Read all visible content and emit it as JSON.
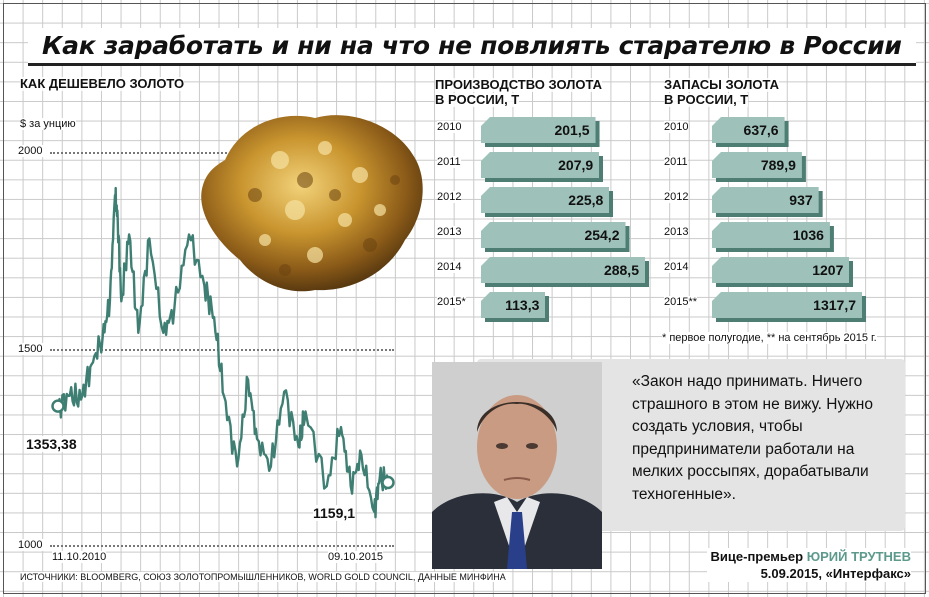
{
  "title": "Как заработать и ни на что не повлиять старателю в России",
  "gold_price": {
    "heading": "КАК ДЕШЕВЕЛО ЗОЛОТО",
    "unit": "$ за унцию",
    "y_ticks": [
      "2000",
      "1500",
      "1000"
    ],
    "start_value": "1353,38",
    "end_value": "1159,1",
    "start_date": "11.10.2010",
    "end_date": "09.10.2015"
  },
  "production": {
    "heading_line1": "ПРОИЗВОДСТВО ЗОЛОТА",
    "heading_line2": "В РОССИИ, Т",
    "years": [
      "2010",
      "2011",
      "2012",
      "2013",
      "2014",
      "2015*"
    ],
    "labels": [
      "201,5",
      "207,9",
      "225,8",
      "254,2",
      "288,5",
      "113,3"
    ]
  },
  "reserves": {
    "heading_line1": "ЗАПАСЫ ЗОЛОТА",
    "heading_line2": "В РОССИИ, Т",
    "years": [
      "2010",
      "2011",
      "2012",
      "2013",
      "2014",
      "2015**"
    ],
    "labels": [
      "637,6",
      "789,9",
      "937",
      "1036",
      "1207",
      "1317,7"
    ]
  },
  "footnote": "* первое полугодие, ** на сентябрь 2015 г.",
  "quote": "«Закон надо принимать. Ничего страшного в этом не вижу. Нужно создать условия, чтобы предприниматели работали на мелких россыпях, дорабатывали техногенные».",
  "attribution": {
    "role": "Вице-премьер",
    "name": "ЮРИЙ ТРУТНЕВ",
    "date_source": "5.09.2015, «Интерфакс»"
  },
  "sources": "ИСТОЧНИКИ: BLOOMBERG, СОЮЗ ЗОЛОТОПРОМЫШЛЕННИКОВ, WORLD GOLD COUNCIL, ДАННЫЕ МИНФИНА",
  "colors": {
    "accent": "#5c9a8c",
    "line": "#3f7f73",
    "bar": "#9ec2ba",
    "bar_shadow": "#4d7d73"
  },
  "chart_data": [
    {
      "type": "line",
      "title": "КАК ДЕШЕВЕЛО ЗОЛОТО",
      "ylabel": "$ за унцию",
      "ylim": [
        1000,
        2000
      ],
      "x_range": [
        "11.10.2010",
        "09.10.2015"
      ],
      "series": [
        {
          "x": [
            "2010-10-11",
            "2010-12-15",
            "2011-02-15",
            "2011-04-15",
            "2011-06-15",
            "2011-07-25",
            "2011-08-22",
            "2011-09-06",
            "2011-09-26",
            "2011-11-08",
            "2011-12-29",
            "2012-02-28",
            "2012-05-15",
            "2012-07-15",
            "2012-10-04",
            "2012-12-28",
            "2013-02-20",
            "2013-04-15",
            "2013-06-27",
            "2013-08-27",
            "2013-10-15",
            "2013-12-31",
            "2014-03-14",
            "2014-06-02",
            "2014-07-10",
            "2014-11-05",
            "2015-01-22",
            "2015-03-17",
            "2015-05-15",
            "2015-07-24",
            "2015-08-24",
            "2015-10-09"
          ],
          "y": [
            1353.38,
            1380,
            1370,
            1460,
            1530,
            1620,
            1890,
            1830,
            1620,
            1790,
            1540,
            1780,
            1540,
            1600,
            1790,
            1660,
            1580,
            1380,
            1200,
            1420,
            1270,
            1200,
            1390,
            1250,
            1340,
            1150,
            1300,
            1150,
            1230,
            1085,
            1170,
            1159.1
          ]
        }
      ]
    },
    {
      "type": "bar",
      "title": "ПРОИЗВОДСТВО ЗОЛОТА В РОССИИ, Т",
      "categories": [
        "2010",
        "2011",
        "2012",
        "2013",
        "2014",
        "2015*"
      ],
      "values": [
        201.5,
        207.9,
        225.8,
        254.2,
        288.5,
        113.3
      ]
    },
    {
      "type": "bar",
      "title": "ЗАПАСЫ ЗОЛОТА В РОССИИ, Т",
      "categories": [
        "2010",
        "2011",
        "2012",
        "2013",
        "2014",
        "2015**"
      ],
      "values": [
        637.6,
        789.9,
        937,
        1036,
        1207,
        1317.7
      ]
    }
  ]
}
